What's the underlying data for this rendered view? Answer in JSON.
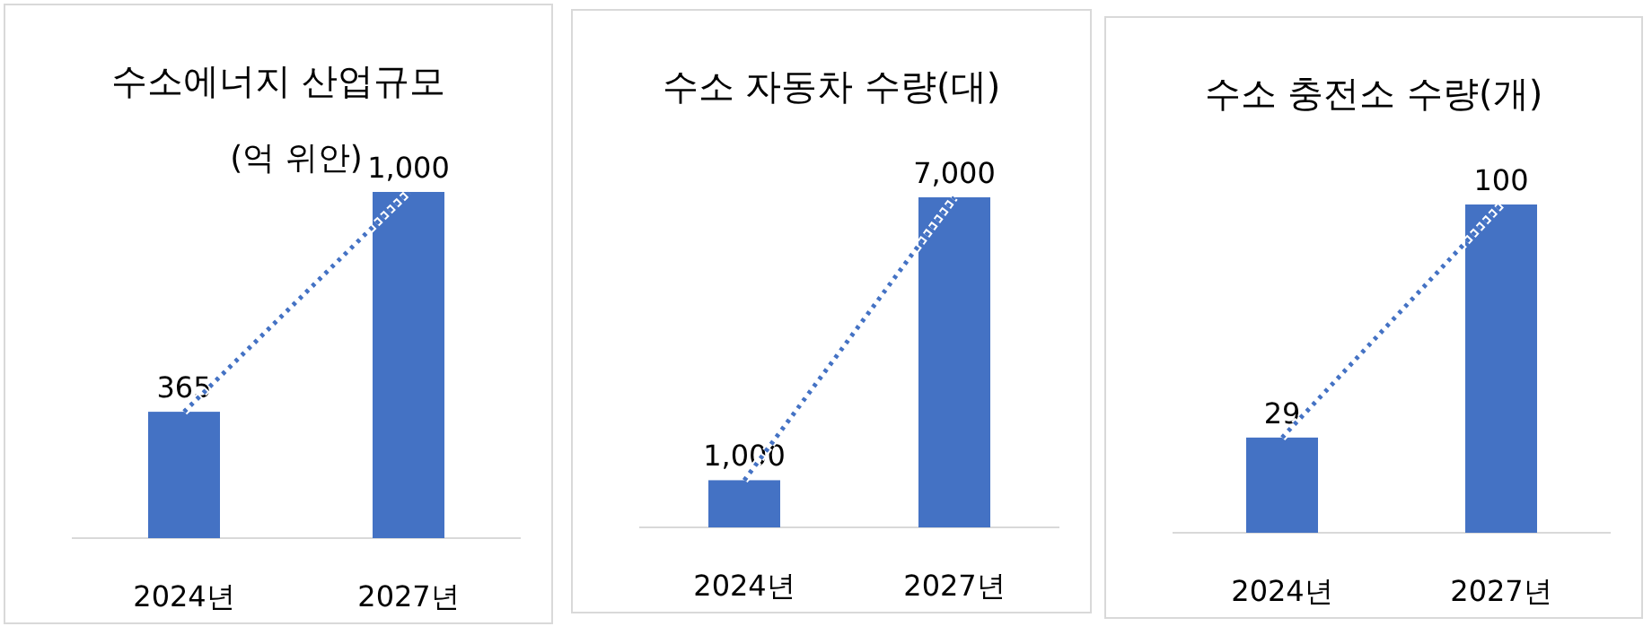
{
  "chart_data": [
    {
      "type": "bar",
      "title": "수소에너지 산업규모",
      "subtitle": "(억 위안)",
      "categories": [
        "2024년",
        "2027년"
      ],
      "series": [
        {
          "color": "#4472c4",
          "values": [
            365,
            1000
          ],
          "value_labels": [
            "365",
            "1,000"
          ]
        },
        {
          "type": "line",
          "color": "#4472c4",
          "line_style": "dotted",
          "values": [
            365,
            1000
          ]
        }
      ]
    },
    {
      "type": "bar",
      "title": "수소 자동차 수량(대)",
      "categories": [
        "2024년",
        "2027년"
      ],
      "series": [
        {
          "color": "#4472c4",
          "values": [
            1000,
            7000
          ],
          "value_labels": [
            "1,000",
            "7,000"
          ]
        },
        {
          "type": "line",
          "color": "#4472c4",
          "line_style": "dotted",
          "values": [
            1000,
            7000
          ]
        }
      ]
    },
    {
      "type": "bar",
      "title": "수소 충전소 수량(개)",
      "categories": [
        "2024년",
        "2027년"
      ],
      "series": [
        {
          "color": "#4472c4",
          "values": [
            29,
            100
          ],
          "value_labels": [
            "29",
            "100"
          ]
        },
        {
          "type": "line",
          "color": "#4472c4",
          "line_style": "dotted",
          "values": [
            29,
            100
          ]
        }
      ]
    }
  ]
}
